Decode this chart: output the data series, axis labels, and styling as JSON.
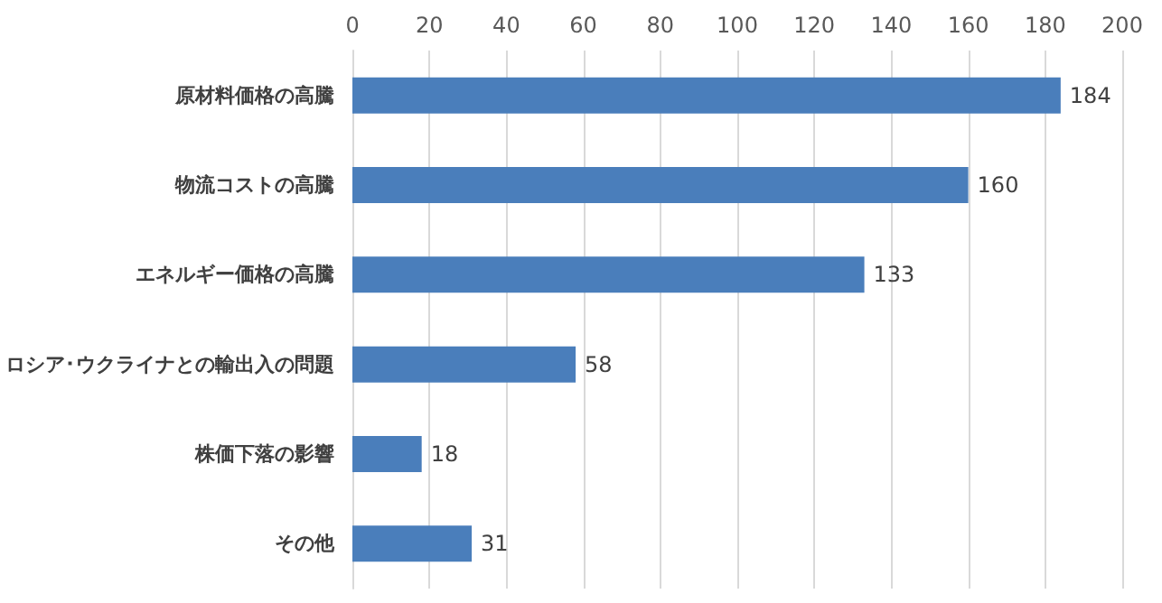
{
  "chart_data": {
    "type": "bar",
    "orientation": "horizontal",
    "categories": [
      "原材料価格の高騰",
      "物流コストの高騰",
      "エネルギー価格の高騰",
      "ロシア･ウクライナとの輸出入の問題",
      "株価下落の影響",
      "その他"
    ],
    "values": [
      184,
      160,
      133,
      58,
      18,
      31
    ],
    "color": "#4a7ebb",
    "xlim": [
      0,
      200
    ],
    "xticks": [
      0,
      20,
      40,
      60,
      80,
      100,
      120,
      140,
      160,
      180,
      200
    ],
    "grid": "x",
    "data_labels": true
  }
}
